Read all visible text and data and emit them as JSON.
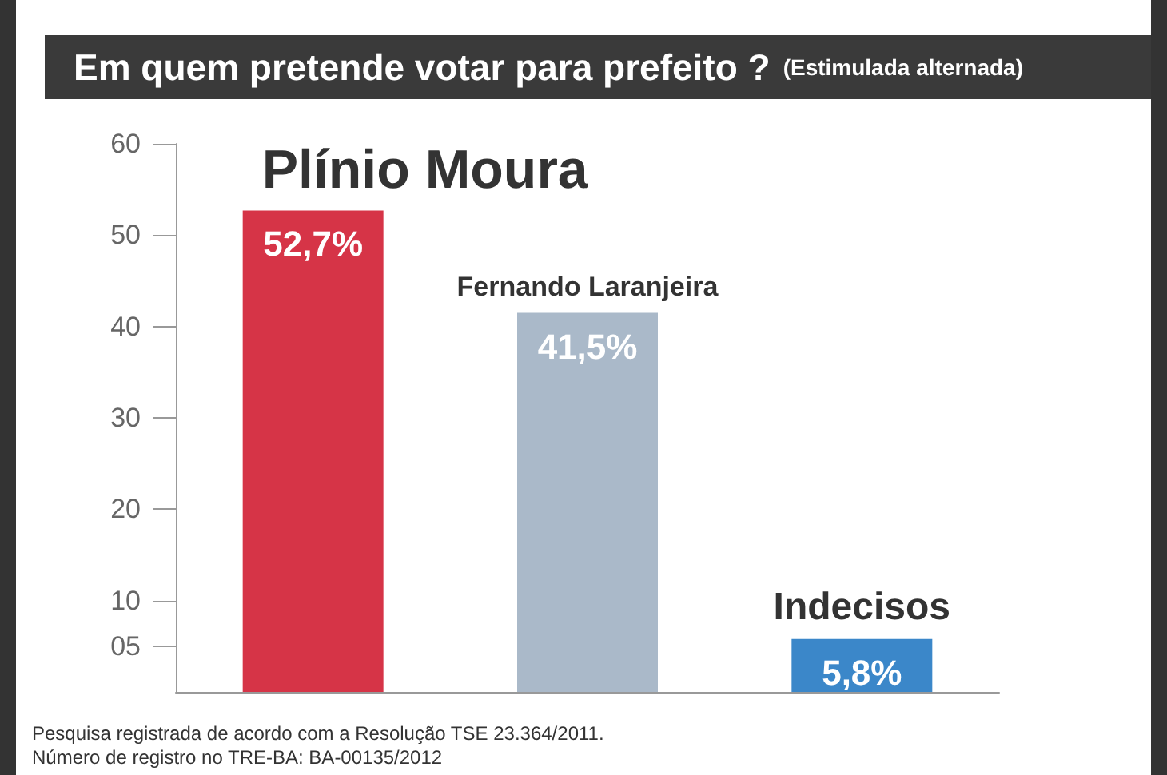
{
  "chart_data": {
    "type": "bar",
    "title": "Em quem pretende votar para prefeito ?",
    "subtitle": "(Estimulada alternada)",
    "categories": [
      "Plínio Moura",
      "Fernando Laranjeira",
      "Indecisos"
    ],
    "values": [
      52.7,
      41.5,
      5.8
    ],
    "colors": [
      "#d63447",
      "#aab9c9",
      "#3b87c9"
    ],
    "value_labels": [
      "52,7%",
      "41,5%",
      "5,8%"
    ],
    "ylim": [
      0,
      60
    ],
    "yticks": [
      {
        "value": 5,
        "label": "05"
      },
      10,
      20,
      30,
      40,
      50,
      60
    ],
    "grid": false,
    "annotations": [
      "Pesquisa registrada de acordo com a Resolução TSE 23.364/2011.",
      "Número de registro no TRE-BA: BA-00135/2012"
    ]
  }
}
